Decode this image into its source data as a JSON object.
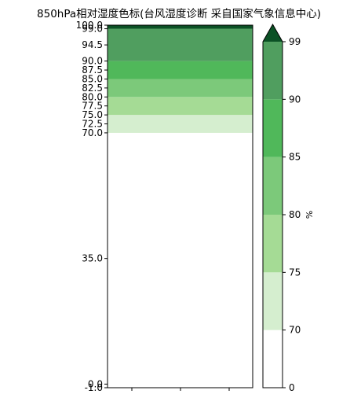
{
  "chart_data": {
    "type": "heatmap",
    "title": "850hPa相对湿度色标(台风湿度诊断 采自国家气象信息中心)",
    "left_panel": {
      "ylim": [
        -1.0,
        100.0
      ],
      "yticks": [
        {
          "value": 100.0,
          "label": "100.0"
        },
        {
          "value": 99.0,
          "label": "99.0"
        },
        {
          "value": 94.5,
          "label": "94.5"
        },
        {
          "value": 90.0,
          "label": "90.0"
        },
        {
          "value": 87.5,
          "label": "87.5"
        },
        {
          "value": 85.0,
          "label": "85.0"
        },
        {
          "value": 82.5,
          "label": "82.5"
        },
        {
          "value": 80.0,
          "label": "80.0"
        },
        {
          "value": 77.5,
          "label": "77.5"
        },
        {
          "value": 75.0,
          "label": "75.0"
        },
        {
          "value": 72.5,
          "label": "72.5"
        },
        {
          "value": 70.0,
          "label": "70.0"
        },
        {
          "value": 35.0,
          "label": "35.0"
        },
        {
          "value": 0.0,
          "label": "0.0"
        },
        {
          "value": -1.0,
          "label": "-1.0"
        }
      ],
      "bands": [
        {
          "from": 0,
          "to": 70,
          "color": "#ffffff"
        },
        {
          "from": 70,
          "to": 75,
          "color": "#d5eecf"
        },
        {
          "from": 75,
          "to": 80,
          "color": "#a5db95"
        },
        {
          "from": 80,
          "to": 85,
          "color": "#7cc97a"
        },
        {
          "from": 85,
          "to": 90,
          "color": "#50b85a"
        },
        {
          "from": 90,
          "to": 99,
          "color": "#509e5f"
        },
        {
          "from": 99,
          "to": 100,
          "color": "#0b5125"
        }
      ]
    },
    "colorbar": {
      "levels": [
        0,
        70,
        75,
        80,
        85,
        90,
        99
      ],
      "ticks": [
        {
          "value": 99,
          "label": "99"
        },
        {
          "value": 90,
          "label": "90"
        },
        {
          "value": 85,
          "label": "85"
        },
        {
          "value": 80,
          "label": "80"
        },
        {
          "value": 75,
          "label": "75"
        },
        {
          "value": 70,
          "label": "70"
        },
        {
          "value": 0,
          "label": "0"
        }
      ],
      "colors": [
        "#ffffff",
        "#d5eecf",
        "#a5db95",
        "#7cc97a",
        "#50b85a",
        "#509e5f"
      ],
      "extend_max_color": "#0b5125",
      "unit": "%"
    }
  }
}
